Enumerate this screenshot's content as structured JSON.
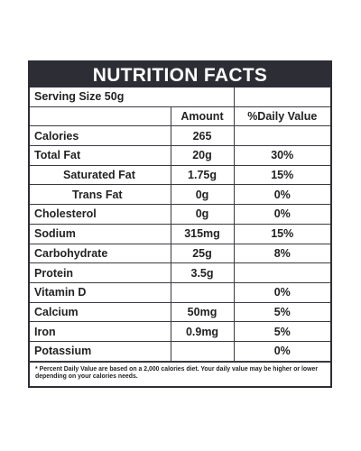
{
  "header": {
    "title": "NUTRITION FACTS"
  },
  "table": {
    "serving": "Serving Size 50g",
    "columns": [
      "Amount",
      "%Daily Value"
    ],
    "rows": [
      [
        "Calories",
        "265",
        null
      ],
      [
        "Total Fat",
        "20g",
        "30%"
      ],
      [
        "Saturated Fat",
        "1.75g",
        "15%"
      ],
      [
        "Trans Fat",
        "0g",
        "0%"
      ],
      [
        "Cholesterol",
        "0g",
        "0%"
      ],
      [
        "Sodium",
        "315mg",
        "15%"
      ],
      [
        "Carbohydrate",
        "25g",
        "8%"
      ],
      [
        "Protein",
        "3.5g",
        null
      ],
      [
        "Vitamin D",
        null,
        "0%"
      ],
      [
        "Calcium",
        "50mg",
        "5%"
      ],
      [
        "Iron",
        "0.9mg",
        "5%"
      ],
      [
        "Potassium",
        null,
        "0%"
      ]
    ]
  },
  "footnote": "* Percent Daily Value are based on a 2,000 calories diet. Your daily value may be higher or lower depending on your calories needs."
}
